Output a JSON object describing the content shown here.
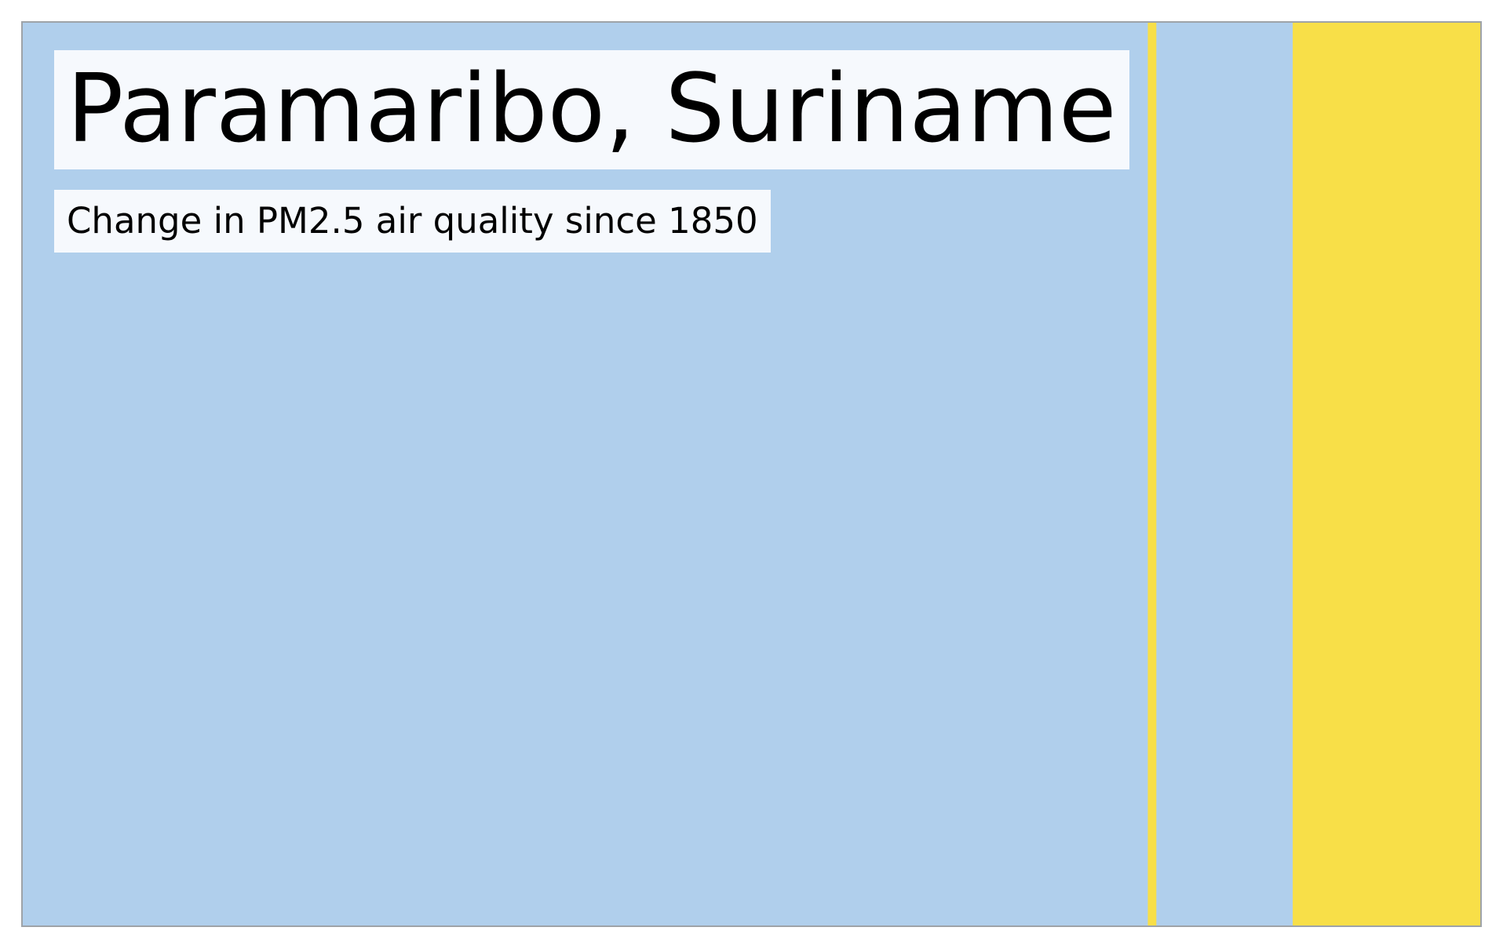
{
  "chart_data": {
    "type": "heatmap",
    "title": "Paramaribo, Suriname",
    "subtitle": "Change in PM2.5 air quality since 1850",
    "x": {
      "start": 1850,
      "end": 2021
    },
    "stripes": [
      {
        "from": 1850,
        "to": 1982,
        "color": "#b0cfec"
      },
      {
        "from": 1982,
        "to": 1983,
        "color": "#f8df48"
      },
      {
        "from": 1983,
        "to": 1999,
        "color": "#b0cfec"
      },
      {
        "from": 1999,
        "to": 2021,
        "color": "#f8df48"
      }
    ],
    "border_color": "#9ea3a8",
    "grid": false,
    "legend": "none"
  }
}
